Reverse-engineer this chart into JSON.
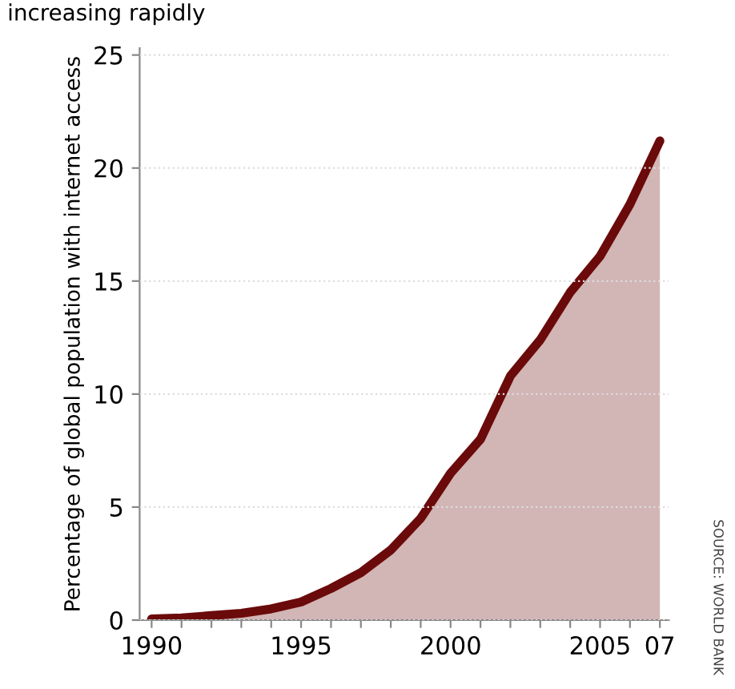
{
  "chart_data": {
    "type": "area",
    "title": "increasing rapidly",
    "ylabel": "Percentage of global population with internet access",
    "annotations": [
      "SOURCE: WORLD BANK"
    ],
    "x": [
      1990,
      1991,
      1992,
      1993,
      1994,
      1995,
      1996,
      1997,
      1998,
      1999,
      2000,
      2001,
      2002,
      2003,
      2004,
      2005,
      2006,
      2007
    ],
    "series": [
      {
        "color": "#6b0a0a",
        "values": [
          0.05,
          0.1,
          0.2,
          0.3,
          0.5,
          0.8,
          1.4,
          2.1,
          3.1,
          4.5,
          6.5,
          8.0,
          10.8,
          12.4,
          14.5,
          16.1,
          18.4,
          21.2
        ]
      }
    ],
    "xlim": [
      1989.6,
      2007.3
    ],
    "ylim": [
      0,
      25.3
    ],
    "xticks": [
      1990,
      {
        "value": 1991,
        "label": null
      },
      {
        "value": 1992,
        "label": null
      },
      {
        "value": 1993,
        "label": null
      },
      {
        "value": 1994,
        "label": null
      },
      1995,
      {
        "value": 1996,
        "label": null
      },
      {
        "value": 1997,
        "label": null
      },
      {
        "value": 1998,
        "label": null
      },
      {
        "value": 1999,
        "label": null
      },
      2000,
      {
        "value": 2001,
        "label": null
      },
      {
        "value": 2002,
        "label": null
      },
      {
        "value": 2003,
        "label": null
      },
      {
        "value": 2004,
        "label": null
      },
      2005,
      {
        "value": 2006,
        "label": null
      },
      {
        "value": 2007,
        "label": "07"
      }
    ],
    "yticks": [
      0,
      5,
      10,
      15,
      20,
      25
    ],
    "grid": "y",
    "legend": false,
    "marker": "none",
    "line_style": "solid"
  }
}
